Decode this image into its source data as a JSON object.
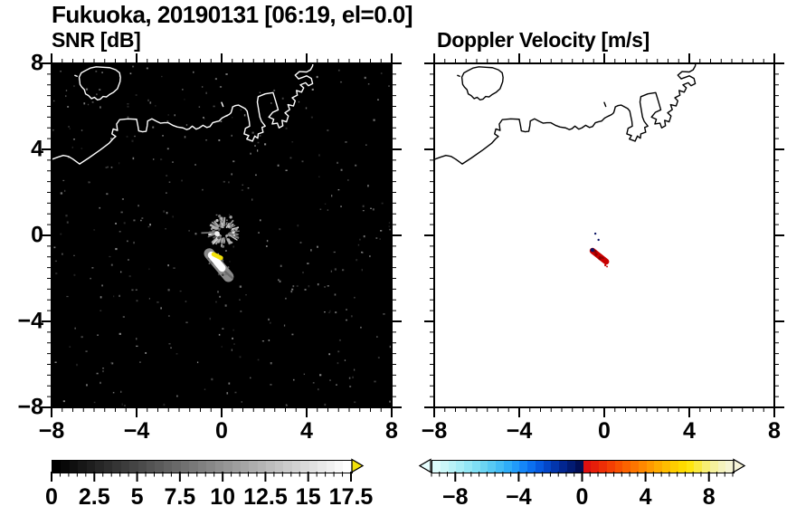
{
  "title": "Fukuoka, 20190131 [06:19, el=0.0]",
  "chart_data": [
    {
      "type": "heatmap",
      "title": "SNR [dB]",
      "xlim": [
        -8,
        8
      ],
      "ylim": [
        -8,
        8
      ],
      "xtick_values": [
        -8,
        -4,
        0,
        4,
        8
      ],
      "xtick_labels": [
        "−8",
        "−4",
        "0",
        "4",
        "8"
      ],
      "ytick_values": [
        8,
        4,
        0,
        -4,
        -8
      ],
      "ytick_labels": [
        "8",
        "4",
        "0",
        "−4",
        "−8"
      ],
      "minor_tick_step": 0.5,
      "background_color": "#000000",
      "coastline_color": "#ffffff",
      "colorbar": {
        "min": 0,
        "max": 17.5,
        "segment_step": 0.5,
        "style": "grayscale",
        "from": "#000000",
        "to": "#ffffff",
        "overflow_color": "#f2e10a",
        "tick_values": [
          0,
          2.5,
          5,
          7.5,
          10,
          12.5,
          15,
          17.5
        ],
        "tick_labels": [
          "0",
          "2.5",
          "5",
          "7.5",
          "10",
          "12.5",
          "15",
          "17.5"
        ]
      },
      "features": [
        {
          "name": "noise-speckle",
          "count": 360
        },
        {
          "name": "ground-clutter-starburst",
          "x": 0.09,
          "y": 0.17,
          "radius": 0.8,
          "hole_radius": 0.18,
          "bright_spot": [
            -0.21,
            0.08
          ]
        },
        {
          "name": "strong-echo",
          "fringe": {
            "from": [
              -0.58,
              -0.85
            ],
            "to": [
              0.32,
              -1.92
            ],
            "width": 0.5,
            "color": "#8a8a8a"
          },
          "tail": {
            "from": [
              0.18,
              -1.7
            ],
            "to": [
              0.5,
              -1.98
            ],
            "width": 0.1,
            "color": "#6a6a6a"
          },
          "core": {
            "from": [
              -0.48,
              -0.92
            ],
            "to": [
              0.02,
              -1.52
            ],
            "width": 0.34,
            "color": "#ffffff"
          },
          "saturated": {
            "from": [
              -0.38,
              -0.88
            ],
            "to": [
              -0.03,
              -1.05
            ],
            "width": 0.2,
            "color": "#f2e10a"
          }
        }
      ]
    },
    {
      "type": "heatmap",
      "title": "Doppler Velocity [m/s]",
      "xlim": [
        -8,
        8
      ],
      "ylim": [
        -8,
        8
      ],
      "xtick_values": [
        -8,
        -4,
        0,
        4,
        8
      ],
      "xtick_labels": [
        "−8",
        "−4",
        "0",
        "4",
        "8"
      ],
      "ytick_values": [
        8,
        4,
        0,
        -4,
        -8
      ],
      "ytick_labels": [],
      "minor_tick_step": 0.5,
      "background_color": "#ffffff",
      "coastline_color": "#000000",
      "colorbar": {
        "min": -9.5,
        "max": 9.5,
        "segment_step": 0.5,
        "colors": [
          "#dcfbfb",
          "#cbf7f8",
          "#b9f3f7",
          "#a7eef6",
          "#93e7f5",
          "#7fdef4",
          "#6bd4f3",
          "#57c9f4",
          "#43bcf6",
          "#2fadf8",
          "#219bf9",
          "#1586f7",
          "#0b6ff0",
          "#0659e0",
          "#0446c8",
          "#0336ad",
          "#022691",
          "#021b73",
          "#020f55",
          "#dd1010",
          "#e61e0a",
          "#ee2e06",
          "#f43f03",
          "#f85101",
          "#fb6300",
          "#fd7500",
          "#fe8800",
          "#ff9a00",
          "#ffac00",
          "#ffbd00",
          "#ffcd00",
          "#ffdb00",
          "#ffe50f",
          "#fae93f",
          "#f7ed73",
          "#f5f09d",
          "#f4f2bd",
          "#f5f4d2"
        ],
        "underflow_color": "#e6fdfd",
        "overflow_color": "#f6f4d8",
        "tick_values": [
          -8,
          -4,
          0,
          4,
          8
        ],
        "tick_labels": [
          "−8",
          "−4",
          "0",
          "4",
          "8"
        ]
      },
      "features": [
        {
          "name": "doppler-echo-positive",
          "from": [
            -0.55,
            -0.72
          ],
          "to": [
            0.09,
            -1.22
          ],
          "width": 0.28,
          "color": "#c80000",
          "dark_color": "#8e0000"
        },
        {
          "name": "doppler-echo-negative",
          "color": "#0a1464",
          "points": [
            [
              -0.56,
              -0.68
            ],
            [
              -0.42,
              0.08
            ],
            [
              -0.27,
              -0.21
            ]
          ],
          "sizes": [
            0.09,
            0.05,
            0.05
          ]
        },
        {
          "name": "doppler-specks-positive",
          "color": "#c80000",
          "points": [
            [
              0.05,
              -1.39
            ],
            [
              0.13,
              -1.45
            ]
          ],
          "sizes": [
            0.05,
            0.04
          ]
        }
      ]
    }
  ]
}
